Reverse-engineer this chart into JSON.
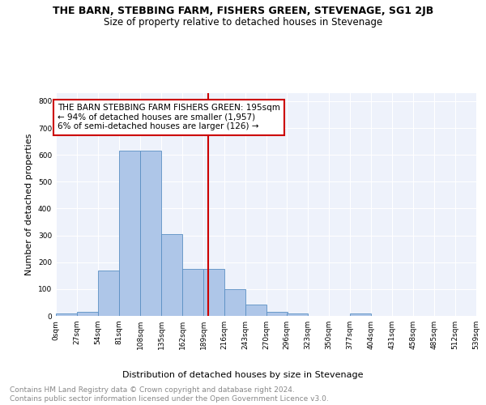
{
  "title": "THE BARN, STEBBING FARM, FISHERS GREEN, STEVENAGE, SG1 2JB",
  "subtitle": "Size of property relative to detached houses in Stevenage",
  "xlabel": "Distribution of detached houses by size in Stevenage",
  "ylabel": "Number of detached properties",
  "bin_edges": [
    0,
    27,
    54,
    81,
    108,
    135,
    162,
    189,
    216,
    243,
    270,
    296,
    323,
    350,
    377,
    404,
    431,
    458,
    485,
    512,
    539
  ],
  "bin_counts": [
    8,
    14,
    170,
    615,
    615,
    305,
    175,
    175,
    100,
    42,
    15,
    10,
    0,
    0,
    8,
    0,
    0,
    0,
    0,
    0
  ],
  "bar_color": "#aec6e8",
  "bar_edge_color": "#5a8fc3",
  "vline_x": 195,
  "vline_color": "#cc0000",
  "annotation_text": "THE BARN STEBBING FARM FISHERS GREEN: 195sqm\n← 94% of detached houses are smaller (1,957)\n6% of semi-detached houses are larger (126) →",
  "annotation_box_color": "#ffffff",
  "annotation_box_edge_color": "#cc0000",
  "ylim": [
    0,
    830
  ],
  "yticks": [
    0,
    100,
    200,
    300,
    400,
    500,
    600,
    700,
    800
  ],
  "xtick_labels": [
    "0sqm",
    "27sqm",
    "54sqm",
    "81sqm",
    "108sqm",
    "135sqm",
    "162sqm",
    "189sqm",
    "216sqm",
    "243sqm",
    "270sqm",
    "296sqm",
    "323sqm",
    "350sqm",
    "377sqm",
    "404sqm",
    "431sqm",
    "458sqm",
    "485sqm",
    "512sqm",
    "539sqm"
  ],
  "footer_text": "Contains HM Land Registry data © Crown copyright and database right 2024.\nContains public sector information licensed under the Open Government Licence v3.0.",
  "bg_color": "#eef2fb",
  "grid_color": "#ffffff",
  "title_fontsize": 9,
  "subtitle_fontsize": 8.5,
  "axis_label_fontsize": 8,
  "tick_fontsize": 6.5,
  "footer_fontsize": 6.5,
  "annotation_fontsize": 7.5
}
